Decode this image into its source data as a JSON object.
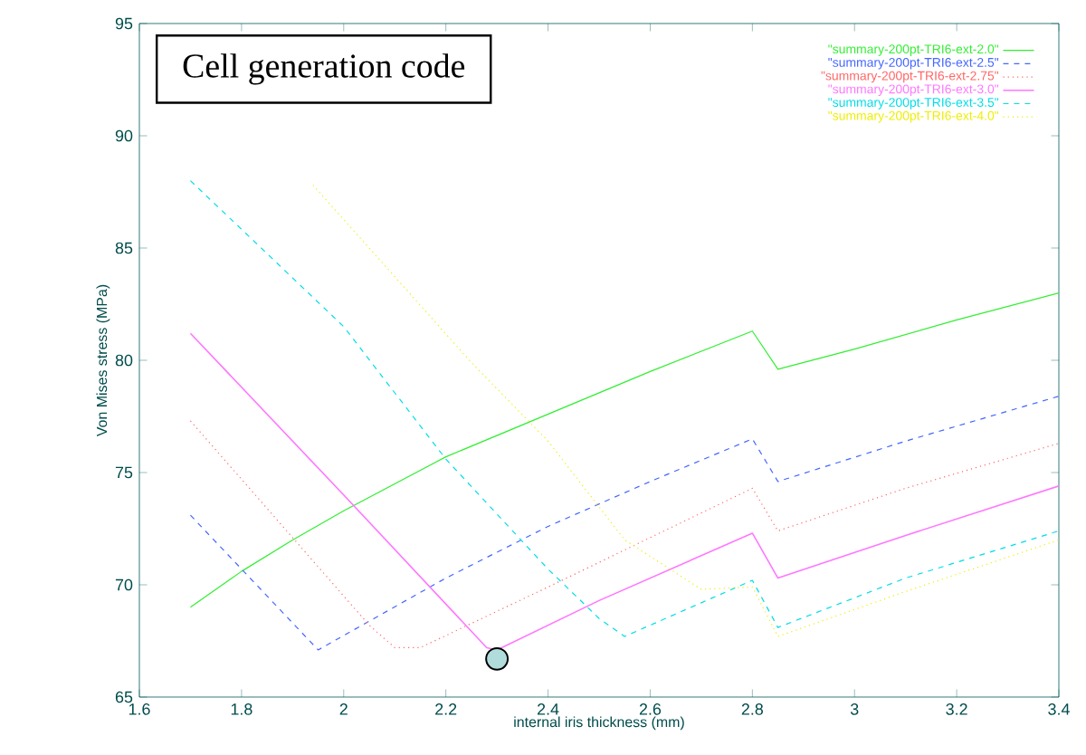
{
  "chart_data": {
    "type": "line",
    "xlabel": "internal iris thickness (mm)",
    "ylabel": "Von Mises stress (MPa)",
    "xlim": [
      1.6,
      3.4
    ],
    "xticks": [
      1.6,
      1.8,
      2,
      2.2,
      2.4,
      2.6,
      2.8,
      3,
      3.2,
      3.4
    ],
    "ylim": [
      65,
      95
    ],
    "yticks": [
      65,
      70,
      75,
      80,
      85,
      90,
      95
    ],
    "grid": false,
    "legend": "top right",
    "marker": "none",
    "annotations": [
      "Cell generation code"
    ],
    "series": [
      {
        "name": "\"summary-200pt-TRI6-ext-2.0\"",
        "color": "#33ee33",
        "line_style": "solid",
        "x": [
          1.7,
          1.8,
          1.9,
          2.0,
          2.2,
          2.4,
          2.6,
          2.8,
          2.85,
          3.0,
          3.2,
          3.4
        ],
        "values": [
          69.0,
          70.6,
          72.0,
          73.3,
          75.7,
          77.6,
          79.5,
          81.3,
          79.6,
          80.5,
          81.8,
          83.0
        ]
      },
      {
        "name": "\"summary-200pt-TRI6-ext-2.5\"",
        "color": "#4466ff",
        "line_style": "dashed",
        "x": [
          1.7,
          1.95,
          2.2,
          2.4,
          2.6,
          2.8,
          2.85,
          3.1,
          3.4
        ],
        "values": [
          73.1,
          67.1,
          70.3,
          72.6,
          74.6,
          76.5,
          74.6,
          76.4,
          78.4
        ]
      },
      {
        "name": "\"summary-200pt-TRI6-ext-2.75\"",
        "color": "#ff6666",
        "line_style": "dotted",
        "x": [
          1.7,
          2.05,
          2.1,
          2.15,
          2.4,
          2.6,
          2.8,
          2.85,
          3.1,
          3.4
        ],
        "values": [
          77.3,
          68.2,
          67.2,
          67.2,
          69.9,
          72.1,
          74.3,
          72.4,
          74.3,
          76.3
        ]
      },
      {
        "name": "\"summary-200pt-TRI6-ext-3.0\"",
        "color": "#ff77ff",
        "line_style": "solid",
        "x": [
          1.7,
          2.0,
          2.28,
          2.3,
          2.5,
          2.8,
          2.85,
          3.1,
          3.4
        ],
        "values": [
          81.2,
          74.0,
          67.2,
          67.1,
          69.3,
          72.3,
          70.3,
          72.2,
          74.4
        ]
      },
      {
        "name": "\"summary-200pt-TRI6-ext-3.5\"",
        "color": "#00dde8",
        "line_style": "dashed",
        "x": [
          1.7,
          2.0,
          2.2,
          2.4,
          2.5,
          2.55,
          2.7,
          2.8,
          2.85,
          3.1,
          3.4
        ],
        "values": [
          88.0,
          81.5,
          75.6,
          70.7,
          68.5,
          67.7,
          69.2,
          70.2,
          68.1,
          70.3,
          72.4
        ]
      },
      {
        "name": "\"summary-200pt-TRI6-ext-4.0\"",
        "color": "#eeee00",
        "line_style": "dotted",
        "x": [
          1.94,
          2.25,
          2.4,
          2.55,
          2.7,
          2.8,
          2.85,
          3.1,
          3.4
        ],
        "values": [
          87.8,
          79.9,
          76.4,
          72.0,
          69.8,
          69.9,
          67.7,
          69.7,
          72.0
        ]
      },
      {
        "type": "scatter",
        "marker": "circle",
        "color": "#b0dcdc",
        "x": [
          2.3
        ],
        "values": [
          66.7
        ]
      }
    ]
  }
}
